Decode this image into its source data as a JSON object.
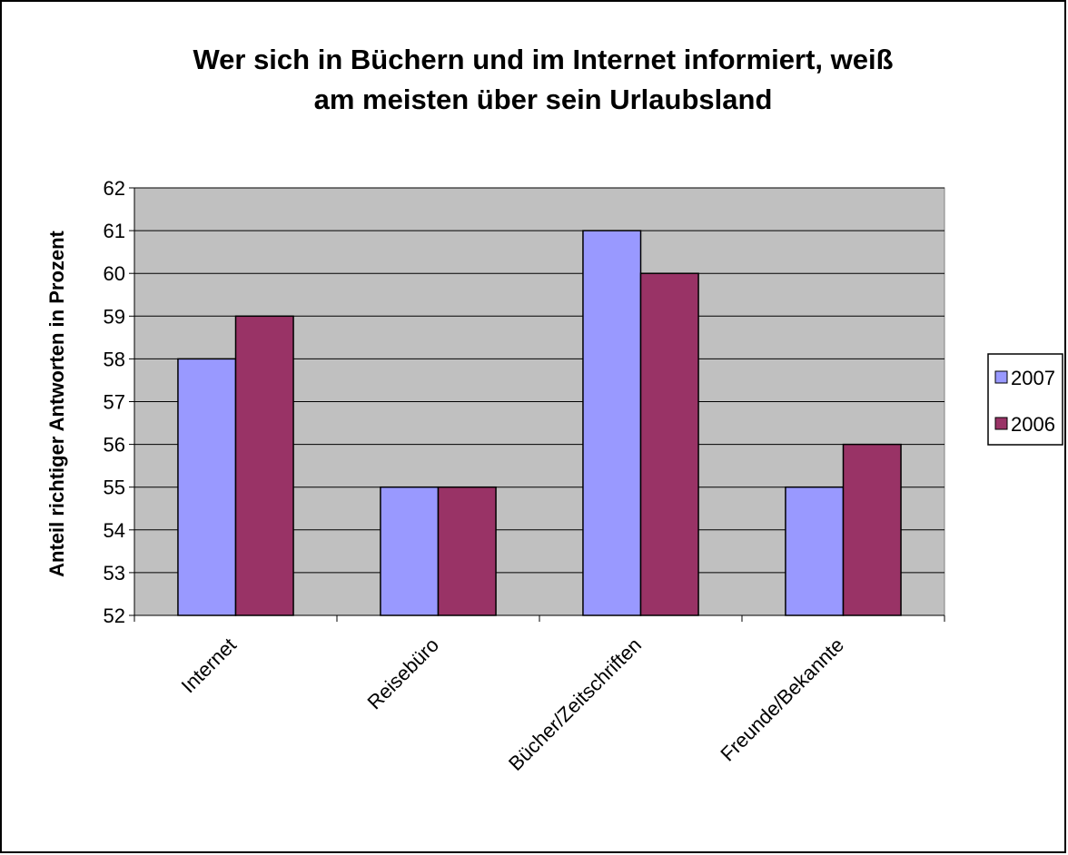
{
  "chart_data": {
    "type": "bar",
    "title": [
      "Wer sich in Büchern und im Internet informiert, weiß",
      "am meisten über sein Urlaubsland"
    ],
    "y_label": "Anteil richtiger Antworten in Prozent",
    "categories": [
      "Internet",
      "Reisebüro",
      "Bücher/Zeitschriften",
      "Freunde/Bekannte"
    ],
    "series": [
      {
        "name": "2007",
        "color": "#9999ff",
        "values": [
          58,
          55,
          61,
          55
        ]
      },
      {
        "name": "2006",
        "color": "#993366",
        "values": [
          59,
          55,
          60,
          56
        ]
      }
    ],
    "ylim": [
      52,
      62
    ],
    "yticks": [
      52,
      53,
      54,
      55,
      56,
      57,
      58,
      59,
      60,
      61,
      62
    ],
    "grid": true,
    "legend": "right",
    "plot_background": "#c0c0c0"
  }
}
